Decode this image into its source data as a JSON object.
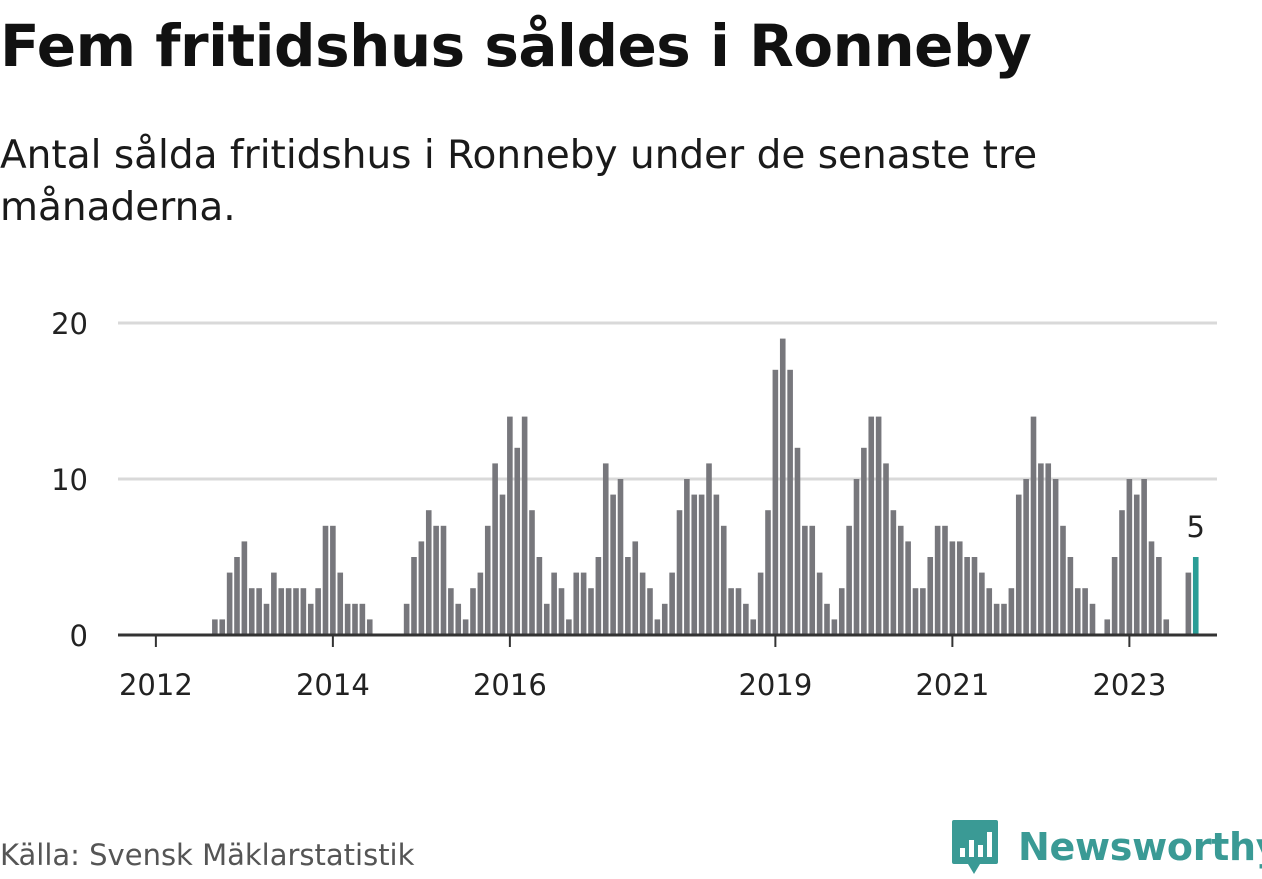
{
  "title": "Fem fritidshus såldes i Ronneby",
  "subtitle": "Antal sålda fritidshus i Ronneby under de senaste tre månaderna.",
  "source": "Källa: Svensk Mäklarstatistik",
  "brand": "Newsworthy",
  "colors": {
    "bar": "#77777c",
    "highlight": "#2a9d96",
    "grid": "#d9d9d9",
    "axis": "#333333",
    "brand": "#3a9a95"
  },
  "chart_data": {
    "type": "bar",
    "title": "Fem fritidshus såldes i Ronneby",
    "xlabel": "",
    "ylabel": "",
    "ylim": [
      0,
      20
    ],
    "y_ticks": [
      0,
      10,
      20
    ],
    "x_tick_labels": [
      "2012",
      "2014",
      "2016",
      "2019",
      "2021",
      "2023"
    ],
    "start_period": "2011-12",
    "highlight_label": "5",
    "values": [
      0,
      0,
      0,
      0,
      0,
      0,
      0,
      0,
      0,
      1,
      1,
      4,
      5,
      6,
      3,
      3,
      2,
      4,
      3,
      3,
      3,
      3,
      2,
      3,
      7,
      7,
      4,
      2,
      2,
      2,
      1,
      0,
      0,
      0,
      0,
      2,
      5,
      6,
      8,
      7,
      7,
      3,
      2,
      1,
      3,
      4,
      7,
      11,
      9,
      14,
      12,
      14,
      8,
      5,
      2,
      4,
      3,
      1,
      4,
      4,
      3,
      5,
      11,
      9,
      10,
      5,
      6,
      4,
      3,
      1,
      2,
      4,
      8,
      10,
      9,
      9,
      11,
      9,
      7,
      3,
      3,
      2,
      1,
      4,
      8,
      17,
      19,
      17,
      12,
      7,
      7,
      4,
      2,
      1,
      3,
      7,
      10,
      12,
      14,
      14,
      11,
      8,
      7,
      6,
      3,
      3,
      5,
      7,
      7,
      6,
      6,
      5,
      5,
      4,
      3,
      2,
      2,
      3,
      9,
      10,
      14,
      11,
      11,
      10,
      7,
      5,
      3,
      3,
      2,
      0,
      1,
      5,
      8,
      10,
      9,
      10,
      6,
      5,
      1,
      0,
      0,
      4,
      5
    ]
  }
}
